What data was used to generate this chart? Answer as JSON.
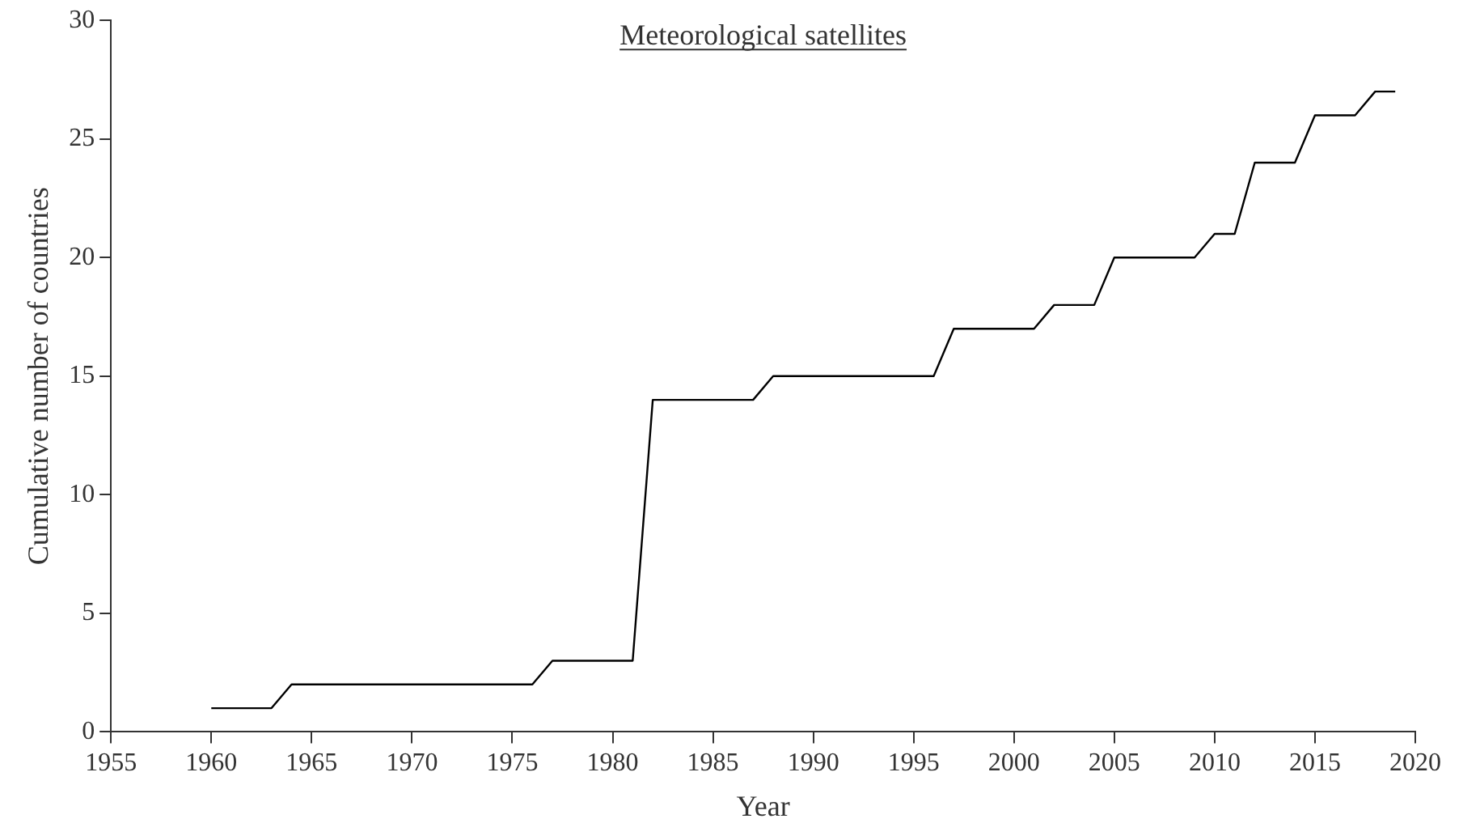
{
  "chart_data": {
    "type": "line",
    "title": "Meteorological satellites",
    "xlabel": "Year",
    "ylabel": "Cumulative number of countries",
    "x": [
      1960,
      1961,
      1962,
      1963,
      1964,
      1965,
      1966,
      1967,
      1968,
      1969,
      1970,
      1971,
      1972,
      1973,
      1974,
      1975,
      1976,
      1977,
      1978,
      1979,
      1980,
      1981,
      1982,
      1983,
      1984,
      1985,
      1986,
      1987,
      1988,
      1989,
      1990,
      1991,
      1992,
      1993,
      1994,
      1995,
      1996,
      1997,
      1998,
      1999,
      2000,
      2001,
      2002,
      2003,
      2004,
      2005,
      2006,
      2007,
      2008,
      2009,
      2010,
      2011,
      2012,
      2013,
      2014,
      2015,
      2016,
      2017,
      2018,
      2019
    ],
    "values": [
      1,
      1,
      1,
      1,
      2,
      2,
      2,
      2,
      2,
      2,
      2,
      2,
      2,
      2,
      2,
      2,
      2,
      3,
      3,
      3,
      3,
      3,
      14,
      14,
      14,
      14,
      14,
      14,
      15,
      15,
      15,
      15,
      15,
      15,
      15,
      15,
      15,
      17,
      17,
      17,
      17,
      17,
      18,
      18,
      18,
      20,
      20,
      20,
      20,
      20,
      21,
      21,
      24,
      24,
      24,
      26,
      26,
      26,
      27,
      27
    ],
    "color": "#000000",
    "marker": "none",
    "line_style": "solid",
    "grid": false,
    "xlim": [
      1955,
      2020
    ],
    "xticks": [
      1955,
      1960,
      1965,
      1970,
      1975,
      1980,
      1985,
      1990,
      1995,
      2000,
      2005,
      2010,
      2015,
      2020
    ],
    "ylim": [
      0,
      30
    ],
    "yticks": [
      0,
      5,
      10,
      15,
      20,
      25,
      30
    ]
  }
}
